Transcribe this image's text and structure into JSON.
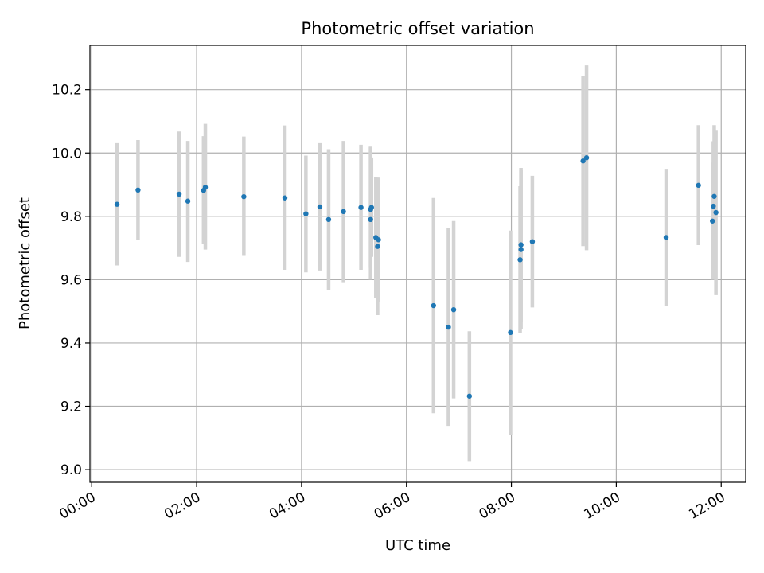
{
  "chart_data": {
    "type": "scatter",
    "title": "Photometric offset variation",
    "xlabel": "UTC time",
    "ylabel": "Photometric offset",
    "xlim": [
      "23:58",
      "12:28"
    ],
    "ylim": [
      8.96,
      10.34
    ],
    "x_ticks": [
      "00:00",
      "02:00",
      "04:00",
      "06:00",
      "08:00",
      "10:00",
      "12:00"
    ],
    "y_ticks": [
      "9.0",
      "9.2",
      "9.4",
      "9.6",
      "9.8",
      "10.0",
      "10.2"
    ],
    "grid": true,
    "colors": {
      "marker": "#1f77b4",
      "errorbar": "#d3d3d3",
      "grid": "#b0b0b0"
    },
    "series": [
      {
        "points": [
          {
            "x": "00:29",
            "y": 9.838,
            "ylo": 9.645,
            "yhi": 10.031
          },
          {
            "x": "00:53",
            "y": 9.883,
            "ylo": 9.725,
            "yhi": 10.041
          },
          {
            "x": "01:40",
            "y": 9.87,
            "ylo": 9.672,
            "yhi": 10.068
          },
          {
            "x": "01:50",
            "y": 9.848,
            "ylo": 9.656,
            "yhi": 10.038
          },
          {
            "x": "02:08",
            "y": 9.882,
            "ylo": 9.713,
            "yhi": 10.053
          },
          {
            "x": "02:10",
            "y": 9.892,
            "ylo": 9.695,
            "yhi": 10.092
          },
          {
            "x": "02:54",
            "y": 9.862,
            "ylo": 9.675,
            "yhi": 10.052
          },
          {
            "x": "03:41",
            "y": 9.858,
            "ylo": 9.631,
            "yhi": 10.087
          },
          {
            "x": "04:05",
            "y": 9.808,
            "ylo": 9.623,
            "yhi": 9.992
          },
          {
            "x": "04:21",
            "y": 9.83,
            "ylo": 9.629,
            "yhi": 10.031
          },
          {
            "x": "04:31",
            "y": 9.79,
            "ylo": 9.568,
            "yhi": 10.012
          },
          {
            "x": "04:48",
            "y": 9.815,
            "ylo": 9.592,
            "yhi": 10.038
          },
          {
            "x": "05:08",
            "y": 9.828,
            "ylo": 9.631,
            "yhi": 10.026
          },
          {
            "x": "05:19",
            "y": 9.822,
            "ylo": 9.6,
            "yhi": 10.02
          },
          {
            "x": "05:19",
            "y": 9.79,
            "ylo": 9.637,
            "yhi": 10.018
          },
          {
            "x": "05:20",
            "y": 9.828,
            "ylo": 9.672,
            "yhi": 9.986
          },
          {
            "x": "05:25",
            "y": 9.733,
            "ylo": 9.541,
            "yhi": 9.925
          },
          {
            "x": "05:27",
            "y": 9.705,
            "ylo": 9.488,
            "yhi": 9.922
          },
          {
            "x": "05:28",
            "y": 9.726,
            "ylo": 9.531,
            "yhi": 9.922
          },
          {
            "x": "06:31",
            "y": 9.518,
            "ylo": 9.178,
            "yhi": 9.858
          },
          {
            "x": "06:48",
            "y": 9.45,
            "ylo": 9.138,
            "yhi": 9.762
          },
          {
            "x": "06:54",
            "y": 9.505,
            "ylo": 9.225,
            "yhi": 9.785
          },
          {
            "x": "07:12",
            "y": 9.232,
            "ylo": 9.027,
            "yhi": 9.437
          },
          {
            "x": "07:59",
            "y": 9.433,
            "ylo": 9.11,
            "yhi": 9.755
          },
          {
            "x": "08:10",
            "y": 9.663,
            "ylo": 9.431,
            "yhi": 9.895
          },
          {
            "x": "08:11",
            "y": 9.71,
            "ylo": 9.467,
            "yhi": 9.953
          },
          {
            "x": "08:11",
            "y": 9.695,
            "ylo": 9.443,
            "yhi": 9.947
          },
          {
            "x": "08:24",
            "y": 9.72,
            "ylo": 9.512,
            "yhi": 9.928
          },
          {
            "x": "09:22",
            "y": 9.975,
            "ylo": 9.706,
            "yhi": 10.243
          },
          {
            "x": "09:26",
            "y": 9.985,
            "ylo": 9.693,
            "yhi": 10.277
          },
          {
            "x": "10:57",
            "y": 9.733,
            "ylo": 9.517,
            "yhi": 9.95
          },
          {
            "x": "11:34",
            "y": 9.898,
            "ylo": 9.709,
            "yhi": 10.088
          },
          {
            "x": "11:50",
            "y": 9.785,
            "ylo": 9.6,
            "yhi": 9.97
          },
          {
            "x": "11:51",
            "y": 9.832,
            "ylo": 9.627,
            "yhi": 10.037
          },
          {
            "x": "11:52",
            "y": 9.863,
            "ylo": 9.64,
            "yhi": 10.088
          },
          {
            "x": "11:54",
            "y": 9.812,
            "ylo": 9.551,
            "yhi": 10.073
          }
        ]
      }
    ]
  }
}
